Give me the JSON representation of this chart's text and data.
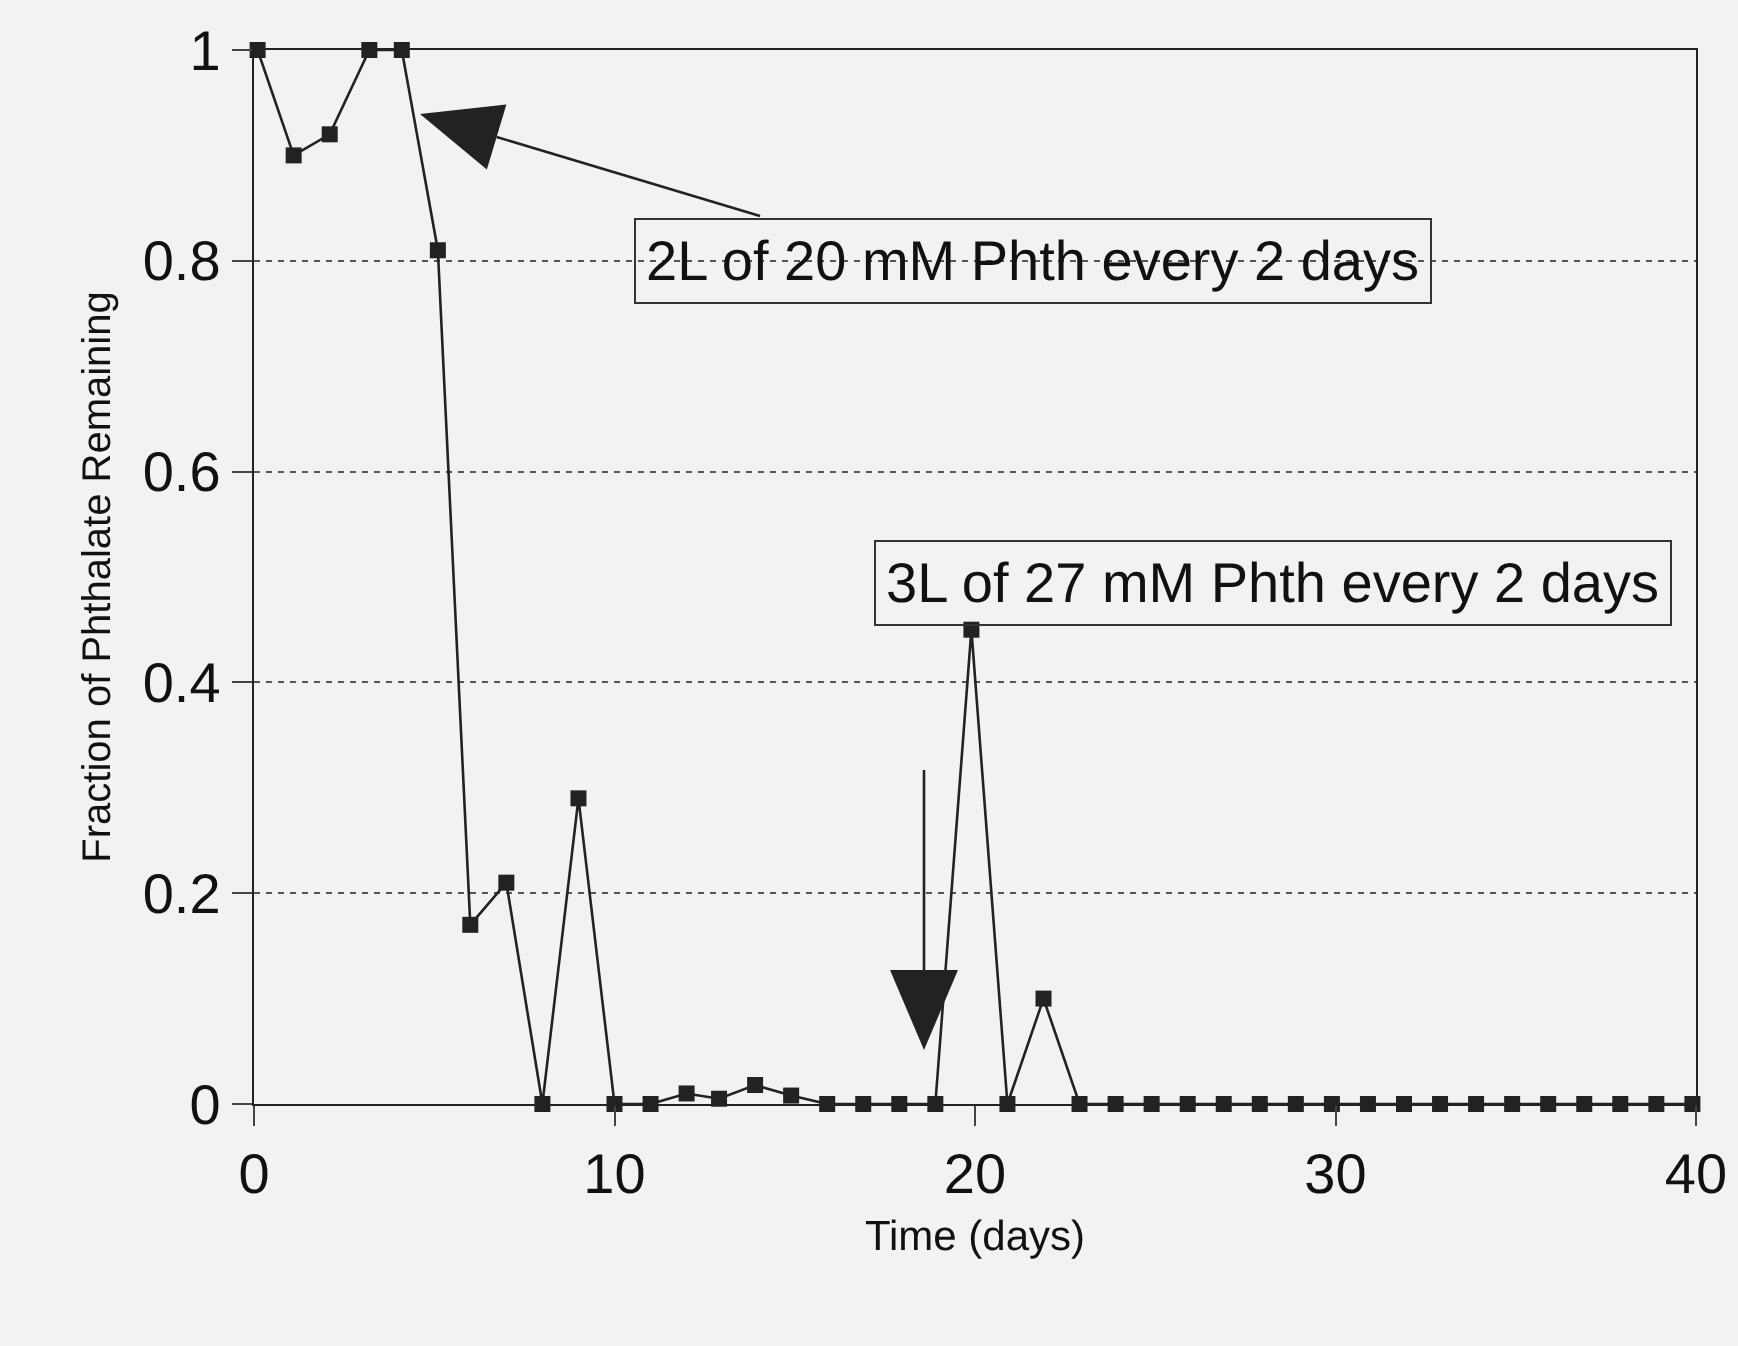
{
  "chart_data": {
    "type": "line",
    "xlabel": "Time (days)",
    "ylabel": "Fraction of Phthalate Remaining",
    "x": [
      0.1,
      1.1,
      2.1,
      3.2,
      4.1,
      5.1,
      6,
      7,
      8,
      9,
      10,
      11,
      12,
      12.9,
      13.9,
      14.9,
      15.9,
      16.9,
      17.9,
      18.9,
      19.9,
      20.9,
      21.9,
      22.9,
      23.9,
      24.9,
      25.9,
      26.9,
      27.9,
      28.9,
      29.9,
      30.9,
      31.9,
      32.9,
      33.9,
      34.9,
      35.9,
      36.9,
      37.9,
      38.9,
      39.9
    ],
    "series": [
      {
        "color": "#222222",
        "values": [
          1,
          0.9,
          0.92,
          1,
          1,
          0.81,
          0.17,
          0.21,
          0,
          0.29,
          0,
          0,
          0.01,
          0.005,
          0.018,
          0.008,
          0,
          0,
          0,
          0,
          0.45,
          0,
          0.1,
          0,
          0,
          0,
          0,
          0,
          0,
          0,
          0,
          0,
          0,
          0,
          0,
          0,
          0,
          0,
          0,
          0,
          0
        ]
      }
    ],
    "xlim": [
      0,
      40
    ],
    "xticks": [
      0,
      10,
      20,
      30,
      40
    ],
    "ylim": [
      0,
      1
    ],
    "yticks": [
      0,
      0.2,
      0.4,
      0.6,
      0.8,
      1
    ],
    "grid": "y",
    "marker": "square",
    "line_style": "solid",
    "annotations": [
      "2L of 20 mM Phth every 2 days",
      "3L of 27 mM Phth every 2 days"
    ]
  }
}
